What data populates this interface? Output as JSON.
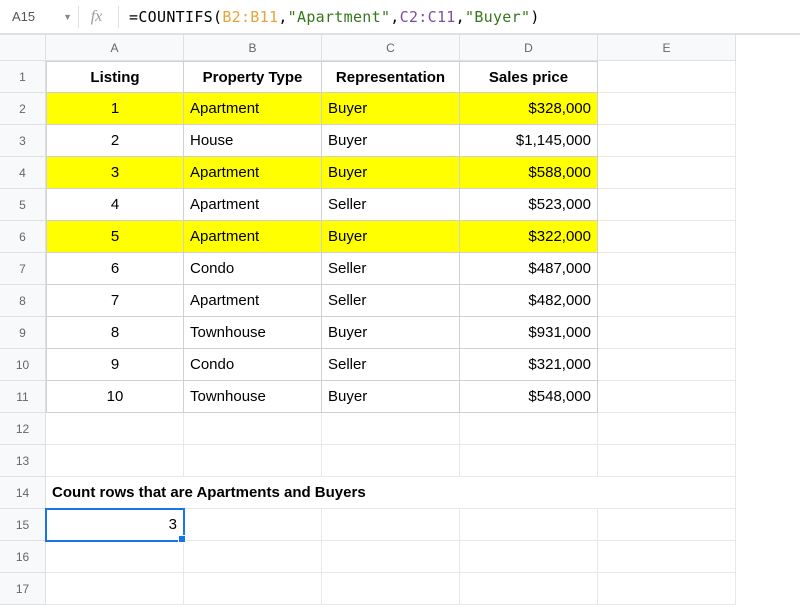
{
  "name_box": "A15",
  "formula": {
    "prefix": "=COUNTIFS(",
    "r1": "B2:B11",
    "s1": "\"Apartment\"",
    "r2": "C2:C11",
    "s2": "\"Buyer\"",
    "suffix": ")",
    "comma": ","
  },
  "col_headers": [
    "A",
    "B",
    "C",
    "D",
    "E"
  ],
  "row_headers": [
    "1",
    "2",
    "3",
    "4",
    "5",
    "6",
    "7",
    "8",
    "9",
    "10",
    "11",
    "12",
    "13",
    "14",
    "15",
    "16",
    "17"
  ],
  "table": {
    "headers": [
      "Listing",
      "Property Type",
      "Representation",
      "Sales price"
    ],
    "rows": [
      {
        "listing": "1",
        "type": "Apartment",
        "rep": "Buyer",
        "price": "$328,000",
        "hl": true
      },
      {
        "listing": "2",
        "type": "House",
        "rep": "Buyer",
        "price": "$1,145,000",
        "hl": false
      },
      {
        "listing": "3",
        "type": "Apartment",
        "rep": "Buyer",
        "price": "$588,000",
        "hl": true
      },
      {
        "listing": "4",
        "type": "Apartment",
        "rep": "Seller",
        "price": "$523,000",
        "hl": false
      },
      {
        "listing": "5",
        "type": "Apartment",
        "rep": "Buyer",
        "price": "$322,000",
        "hl": true
      },
      {
        "listing": "6",
        "type": "Condo",
        "rep": "Seller",
        "price": "$487,000",
        "hl": false
      },
      {
        "listing": "7",
        "type": "Apartment",
        "rep": "Seller",
        "price": "$482,000",
        "hl": false
      },
      {
        "listing": "8",
        "type": "Townhouse",
        "rep": "Buyer",
        "price": "$931,000",
        "hl": false
      },
      {
        "listing": "9",
        "type": "Condo",
        "rep": "Seller",
        "price": "$321,000",
        "hl": false
      },
      {
        "listing": "10",
        "type": "Townhouse",
        "rep": "Buyer",
        "price": "$548,000",
        "hl": false
      }
    ]
  },
  "summary_label": "Count rows that are Apartments and Buyers",
  "summary_value": "3",
  "colors": {
    "highlight": "#ffff00",
    "selection": "#1a73e8",
    "grid": "#e8e8e8",
    "header_bg": "#f8f9fa",
    "range1": "#e8a33d",
    "string": "#38761d",
    "range2": "#7b4fa0"
  }
}
